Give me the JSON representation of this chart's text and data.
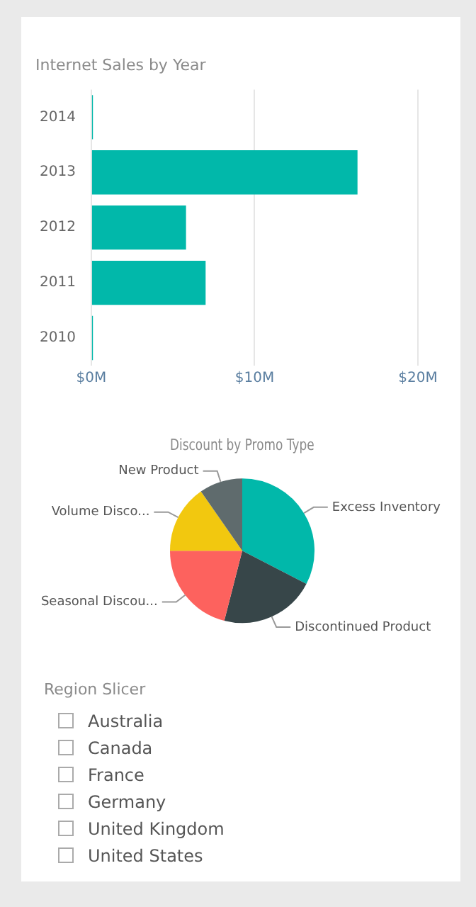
{
  "chart_data": [
    {
      "type": "bar",
      "title": "Internet Sales by Year",
      "orientation": "horizontal",
      "categories": [
        "2014",
        "2013",
        "2012",
        "2011",
        "2010"
      ],
      "values": [
        0.1,
        16.3,
        5.8,
        7.0,
        0.1
      ],
      "color": "#01b8aa",
      "xlim": [
        0,
        20
      ],
      "xticks": [
        {
          "value": 0,
          "label": "$0M"
        },
        {
          "value": 10,
          "label": "$10M"
        },
        {
          "value": 20,
          "label": "$20M"
        }
      ],
      "grid": "x",
      "legend": false
    },
    {
      "type": "pie",
      "title": "Discount by Promo Type",
      "categories": [
        "Excess Inventory",
        "Discontinued Product",
        "Seasonal Discou...",
        "Volume Disco...",
        "New Product"
      ],
      "values": [
        32.6,
        21.4,
        21.0,
        15.3,
        9.7
      ],
      "colors": [
        "#01b8aa",
        "#374649",
        "#fd625e",
        "#f2c80f",
        "#5f6b6d"
      ],
      "legend": false
    },
    {
      "type": "other",
      "title": "Region Slicer",
      "categories": [
        "Australia",
        "Canada",
        "France",
        "Germany",
        "United Kingdom",
        "United States"
      ]
    }
  ]
}
